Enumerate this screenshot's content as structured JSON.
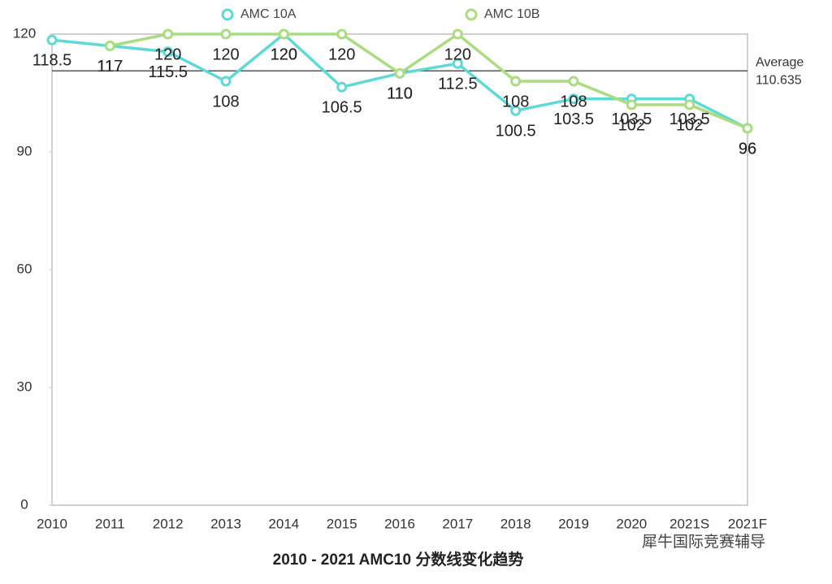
{
  "chart_data": {
    "type": "line",
    "title": "2010 - 2021 AMC10 分数线变化趋势",
    "watermark": "犀牛国际竞赛辅导",
    "categories": [
      "2010",
      "2011",
      "2012",
      "2013",
      "2014",
      "2015",
      "2016",
      "2017",
      "2018",
      "2019",
      "2020",
      "2021S",
      "2021F"
    ],
    "series": [
      {
        "name": "AMC 10A",
        "color": "#5fd9d6",
        "values": [
          118.5,
          117,
          115.5,
          108,
          120,
          106.5,
          110,
          112.5,
          100.5,
          103.5,
          103.5,
          103.5,
          96
        ]
      },
      {
        "name": "AMC 10B",
        "color": "#abdc80",
        "values": [
          null,
          117,
          120,
          120,
          120,
          120,
          110,
          120,
          108,
          108,
          102,
          102,
          96
        ]
      }
    ],
    "average": {
      "label": "Average",
      "value": 110.635
    },
    "ylim": [
      0,
      120
    ],
    "yticks": [
      0,
      30,
      60,
      90,
      120
    ]
  }
}
